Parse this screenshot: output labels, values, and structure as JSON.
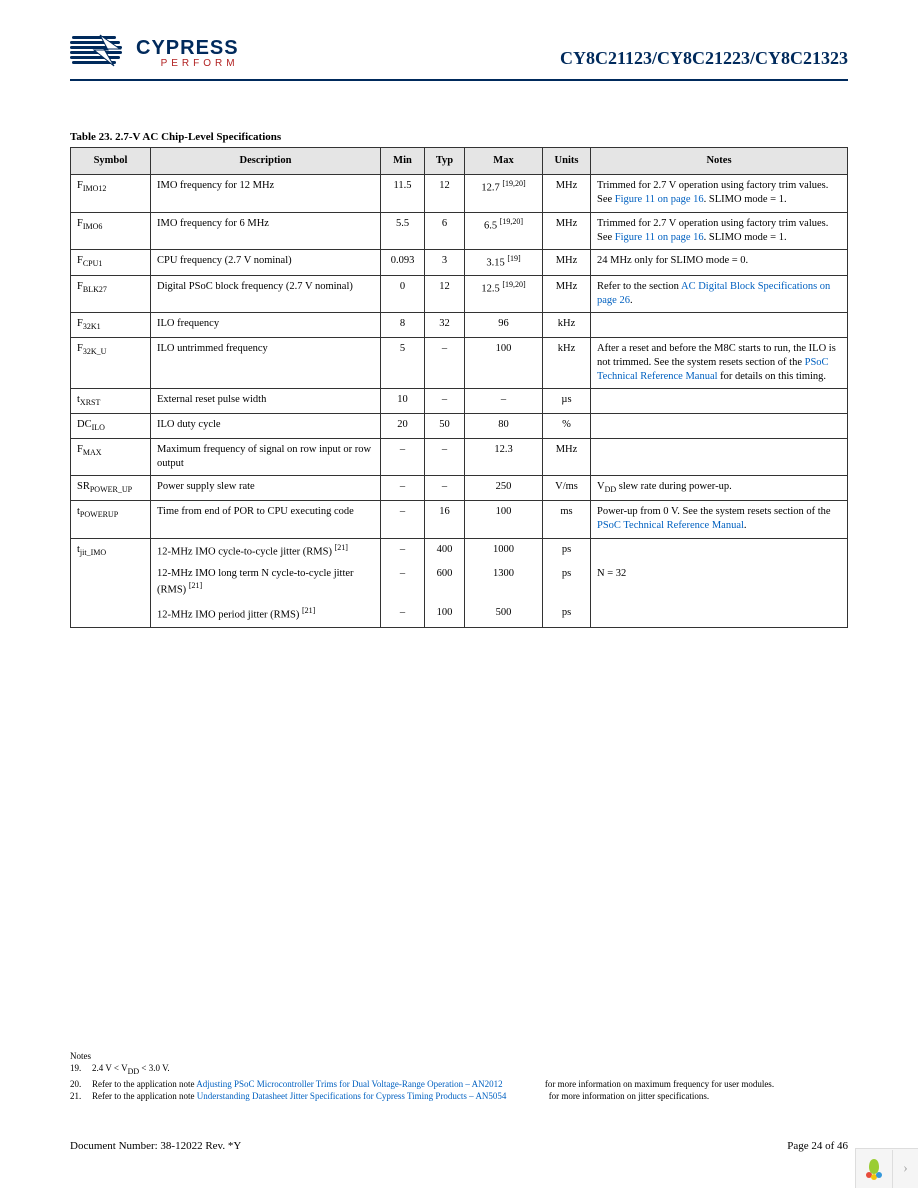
{
  "header": {
    "brand_top": "CYPRESS",
    "brand_sub": "PERFORM",
    "doc_title": "CY8C21123/CY8C21223/CY8C21323"
  },
  "table": {
    "caption": "Table 23.  2.7-V AC Chip-Level Specifications",
    "columns": [
      "Symbol",
      "Description",
      "Min",
      "Typ",
      "Max",
      "Units",
      "Notes"
    ],
    "rows": [
      {
        "symbol_main": "F",
        "symbol_sub": "IMO12",
        "description": "IMO frequency for 12 MHz",
        "min": "11.5",
        "typ": "12",
        "max": "12.7",
        "max_sup": "[19,20]",
        "units": "MHz",
        "notes_pre": "Trimmed for 2.7 V operation using factory trim values. See ",
        "notes_link": "Figure 11 on page 16",
        "notes_post": ". SLIMO mode = 1."
      },
      {
        "symbol_main": "F",
        "symbol_sub": "IMO6",
        "description": "IMO frequency for 6 MHz",
        "min": "5.5",
        "typ": "6",
        "max": "6.5",
        "max_sup": "[19,20]",
        "units": "MHz",
        "notes_pre": "Trimmed for 2.7 V operation using factory trim values. See ",
        "notes_link": "Figure 11 on page 16",
        "notes_post": ". SLIMO mode = 1."
      },
      {
        "symbol_main": "F",
        "symbol_sub": "CPU1",
        "description": "CPU frequency (2.7 V nominal)",
        "min": "0.093",
        "typ": "3",
        "max": "3.15",
        "max_sup": "[19]",
        "units": "MHz",
        "notes_pre": "24 MHz only for SLIMO mode = 0.",
        "notes_link": "",
        "notes_post": ""
      },
      {
        "symbol_main": "F",
        "symbol_sub": "BLK27",
        "description": "Digital PSoC block frequency (2.7 V nominal)",
        "min": "0",
        "typ": "12",
        "max": "12.5",
        "max_sup": "[19,20]",
        "units": "MHz",
        "notes_pre": "Refer to the section ",
        "notes_link": "AC Digital Block Specifications on page 26",
        "notes_post": "."
      },
      {
        "symbol_main": "F",
        "symbol_sub": "32K1",
        "description": "ILO frequency",
        "min": "8",
        "typ": "32",
        "max": "96",
        "max_sup": "",
        "units": "kHz",
        "notes_pre": "",
        "notes_link": "",
        "notes_post": ""
      },
      {
        "symbol_main": "F",
        "symbol_sub": "32K_U",
        "description": "ILO untrimmed frequency",
        "min": "5",
        "typ": "–",
        "max": "100",
        "max_sup": "",
        "units": "kHz",
        "notes_pre": "After a reset and before the M8C starts to run, the ILO is not trimmed. See the system resets section of the ",
        "notes_link": "PSoC Technical Reference Manual",
        "notes_post": " for details on this timing."
      },
      {
        "symbol_main": "t",
        "symbol_sub": "XRST",
        "description": "External reset pulse width",
        "min": "10",
        "typ": "–",
        "max": "–",
        "max_sup": "",
        "units": "µs",
        "notes_pre": "",
        "notes_link": "",
        "notes_post": ""
      },
      {
        "symbol_main": "DC",
        "symbol_sub": "ILO",
        "description": "ILO duty cycle",
        "min": "20",
        "typ": "50",
        "max": "80",
        "max_sup": "",
        "units": "%",
        "notes_pre": "",
        "notes_link": "",
        "notes_post": ""
      },
      {
        "symbol_main": "F",
        "symbol_sub": "MAX",
        "description": "Maximum frequency of signal on row input or row output",
        "min": "–",
        "typ": "–",
        "max": "12.3",
        "max_sup": "",
        "units": "MHz",
        "notes_pre": "",
        "notes_link": "",
        "notes_post": ""
      },
      {
        "symbol_main": "SR",
        "symbol_sub": "POWER_UP",
        "description": "Power supply slew rate",
        "min": "–",
        "typ": "–",
        "max": "250",
        "max_sup": "",
        "units": "V/ms",
        "notes_pre": "V",
        "notes_pre_sub": "DD",
        "notes_post": " slew rate during power-up.",
        "notes_link": ""
      },
      {
        "symbol_main": "t",
        "symbol_sub": "POWERUP",
        "description": "Time from end of POR to CPU executing code",
        "min": "–",
        "typ": "16",
        "max": "100",
        "max_sup": "",
        "units": "ms",
        "notes_pre": "Power-up from 0 V. See the system resets section of the ",
        "notes_link": "PSoC Technical Reference Manual",
        "notes_post": "."
      },
      {
        "symbol_main": "t",
        "symbol_sub": "jit_IMO",
        "description": "12-MHz IMO cycle-to-cycle jitter (RMS)",
        "desc_sup": "[21]",
        "min": "–",
        "typ": "400",
        "max": "1000",
        "max_sup": "",
        "units": "ps",
        "notes_pre": "",
        "notes_link": "",
        "notes_post": "",
        "merge": "first"
      },
      {
        "symbol_main": "",
        "symbol_sub": "",
        "description": "12-MHz IMO long term N cycle-to-cycle jitter (RMS)",
        "desc_sup": "[21]",
        "min": "–",
        "typ": "600",
        "max": "1300",
        "max_sup": "",
        "units": "ps",
        "notes_pre": "N = 32",
        "notes_link": "",
        "notes_post": "",
        "merge": "mid"
      },
      {
        "symbol_main": "",
        "symbol_sub": "",
        "description": "12-MHz IMO period jitter (RMS)",
        "desc_sup": "[21]",
        "min": "–",
        "typ": "100",
        "max": "500",
        "max_sup": "",
        "units": "ps",
        "notes_pre": "",
        "notes_link": "",
        "notes_post": "",
        "merge": "last"
      }
    ]
  },
  "footnotes": {
    "heading": "Notes",
    "items": [
      {
        "num": "19.",
        "text": "2.4 V < V",
        "sub": "DD",
        "text2": " < 3.0 V."
      },
      {
        "num": "20.",
        "text": "Refer to the application note ",
        "link": "Adjusting PSoC Microcontroller Trims for Dual Voltage-Range Operation – AN2012",
        "tail": " for more information on maximum frequency for user modules."
      },
      {
        "num": "21.",
        "text": "Refer to the application note ",
        "link": "Understanding Datasheet Jitter Specifications for Cypress Timing Products – AN5054",
        "tail": " for more information on jitter specifications."
      }
    ]
  },
  "footer": {
    "left": "Document Number: 38-12022 Rev. *Y",
    "right": "Page 24 of 46"
  },
  "widget": {
    "chevron": "›"
  }
}
